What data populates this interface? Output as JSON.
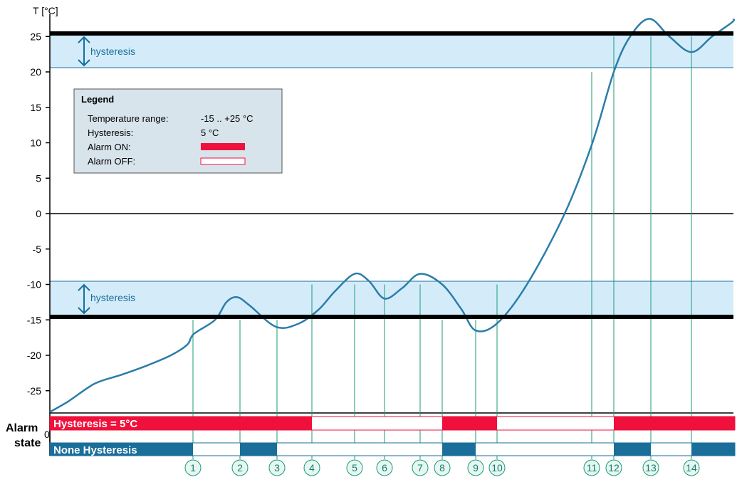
{
  "chart_data": {
    "type": "line",
    "ylabel": "T [°C]",
    "ylim": [
      -28,
      27
    ],
    "y_ticks": [
      25,
      20,
      15,
      10,
      5,
      0,
      -5,
      -10,
      -15,
      -20,
      -25
    ],
    "upper_limit": 25,
    "lower_limit": -15,
    "hysteresis_label": "hysteresis",
    "temperature_curve": [
      [
        0,
        -28
      ],
      [
        1,
        -26.5
      ],
      [
        2,
        -24
      ],
      [
        3,
        -22.8
      ],
      [
        4,
        -21.5
      ],
      [
        5,
        -20
      ],
      [
        6,
        -18.5
      ],
      [
        7,
        -17
      ],
      [
        8,
        -15
      ],
      [
        9,
        -12.5
      ],
      [
        10,
        -11.8
      ],
      [
        11,
        -13
      ],
      [
        12,
        -16
      ],
      [
        13,
        -15.5
      ],
      [
        14,
        -13.5
      ],
      [
        15,
        -11
      ],
      [
        16,
        -8.5
      ],
      [
        17,
        -9.5
      ],
      [
        18,
        -12
      ],
      [
        19,
        -10.5
      ],
      [
        20,
        -8.5
      ],
      [
        21,
        -10
      ],
      [
        22,
        -13.5
      ],
      [
        23,
        -16.5
      ],
      [
        24,
        -15.5
      ],
      [
        25,
        -10
      ],
      [
        26,
        0
      ],
      [
        27,
        10
      ],
      [
        28,
        20
      ],
      [
        29,
        25
      ],
      [
        30,
        27.5
      ],
      [
        31,
        25
      ],
      [
        32,
        22.8
      ],
      [
        33,
        25
      ],
      [
        34,
        27
      ],
      [
        35,
        27.5
      ]
    ],
    "markers": [
      "1",
      "2",
      "3",
      "4",
      "5",
      "6",
      "7",
      "8",
      "9",
      "10",
      "11",
      "12",
      "13",
      "14"
    ],
    "marker_temperatures": [
      -15,
      -15,
      -15,
      -10,
      -10,
      -10,
      -10,
      -15,
      -15,
      -10,
      20,
      25,
      25,
      25
    ]
  },
  "legend": {
    "title": "Legend",
    "range_label": "Temperature range:",
    "range_value": "-15 .. +25 °C",
    "hysteresis_label": "Hysteresis:",
    "hysteresis_value": "5 °C",
    "alarm_on_label": "Alarm ON:",
    "alarm_off_label": "Alarm OFF:"
  },
  "alarm": {
    "label_line1": "Alarm",
    "label_line2": "state",
    "zero": "0",
    "with_hysteresis_label": "Hysteresis = 5°C",
    "no_hysteresis_label": "None Hysteresis",
    "with_hysteresis_on_segments": [
      [
        "start",
        "4"
      ],
      [
        "8",
        "10"
      ],
      [
        "12",
        "end"
      ]
    ],
    "no_hysteresis_on_segments": [
      [
        "start",
        "1"
      ],
      [
        "2",
        "3"
      ],
      [
        "8",
        "9"
      ],
      [
        "12",
        "13"
      ],
      [
        "14",
        "end"
      ]
    ]
  },
  "colors": {
    "curve": "#2b7da8",
    "band": "#d4ecfa",
    "band_edge": "#1a6e9a",
    "alarm_on": "#f0103c",
    "no_hyst_bar": "#1a6e9a",
    "marker": "#1a9a7a",
    "legend_bg": "#d8e4ec"
  }
}
